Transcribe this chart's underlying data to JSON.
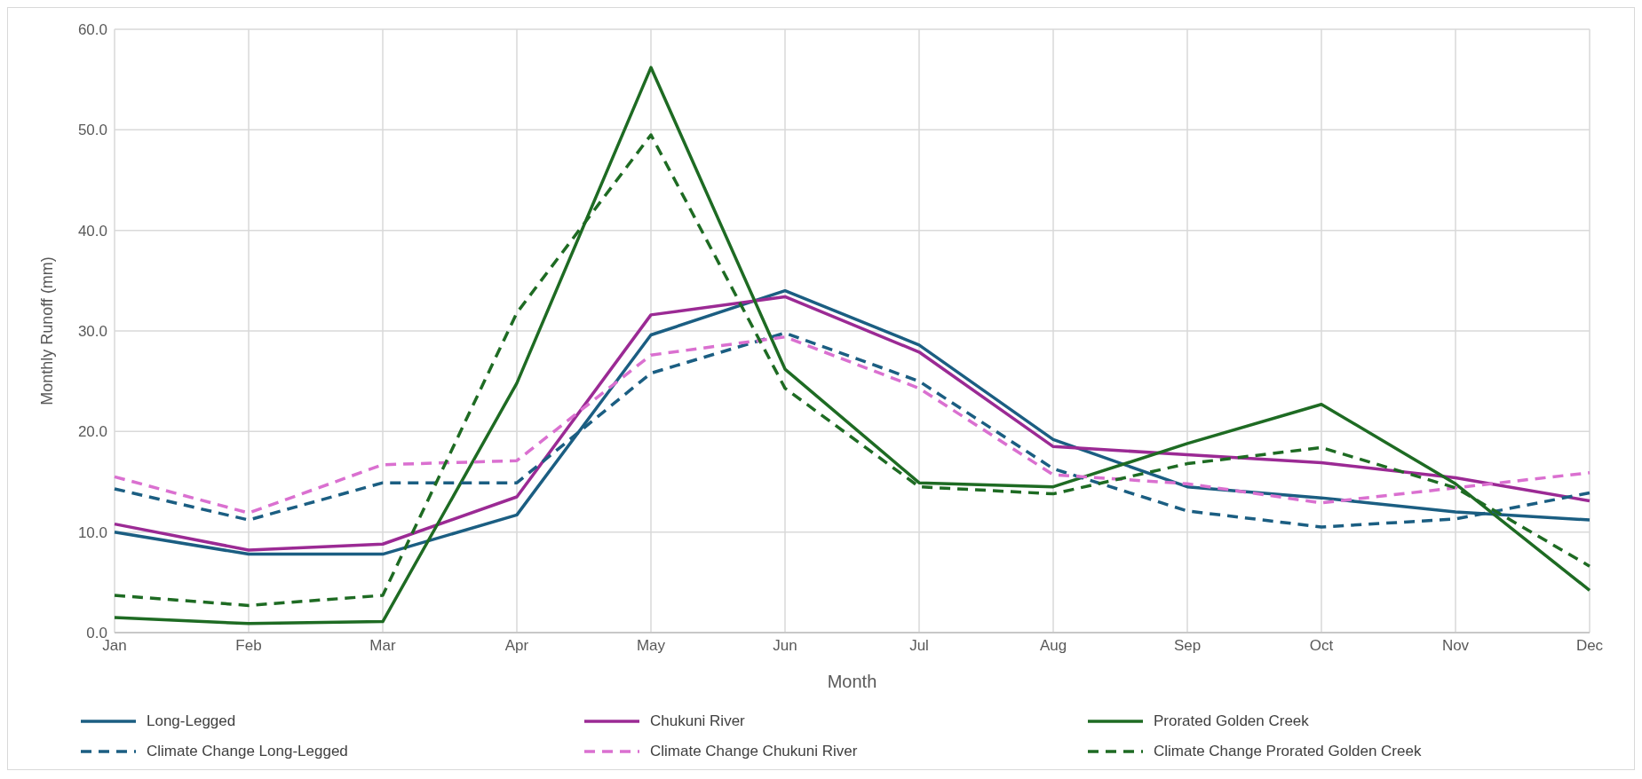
{
  "chart_data": {
    "type": "line",
    "xlabel": "Month",
    "ylabel": "Monthly Runoff (mm)",
    "categories": [
      "Jan",
      "Feb",
      "Mar",
      "Apr",
      "May",
      "Jun",
      "Jul",
      "Aug",
      "Sep",
      "Oct",
      "Nov",
      "Dec"
    ],
    "series": [
      {
        "name": "Long-Legged",
        "color": "#1b5e82",
        "line_style": "solid",
        "values": [
          10.0,
          7.8,
          7.8,
          11.7,
          29.6,
          34.0,
          28.6,
          19.2,
          14.5,
          13.4,
          12.0,
          11.2
        ]
      },
      {
        "name": "Chukuni River",
        "color": "#9b2a94",
        "line_style": "solid",
        "values": [
          10.8,
          8.2,
          8.8,
          13.5,
          31.6,
          33.4,
          27.9,
          18.5,
          17.7,
          16.9,
          15.4,
          13.1
        ]
      },
      {
        "name": "Prorated Golden Creek",
        "color": "#1e6b23",
        "line_style": "solid",
        "values": [
          1.5,
          0.9,
          1.1,
          24.8,
          56.2,
          26.2,
          14.9,
          14.5,
          18.8,
          22.7,
          14.8,
          4.2
        ]
      },
      {
        "name": "Climate Change Long-Legged",
        "color": "#1b5e82",
        "line_style": "dashed",
        "values": [
          14.3,
          11.2,
          14.9,
          14.9,
          25.8,
          29.8,
          25.0,
          16.3,
          12.1,
          10.5,
          11.3,
          13.9
        ]
      },
      {
        "name": "Climate Change Chukuni River",
        "color": "#da70d0",
        "line_style": "dashed",
        "values": [
          15.5,
          11.9,
          16.7,
          17.1,
          27.6,
          29.4,
          24.3,
          15.7,
          14.8,
          12.9,
          14.4,
          15.9
        ]
      },
      {
        "name": "Climate Change Prorated Golden Creek",
        "color": "#1e6b23",
        "line_style": "dashed",
        "values": [
          3.7,
          2.7,
          3.7,
          31.8,
          49.5,
          24.3,
          14.5,
          13.8,
          16.8,
          18.4,
          14.4,
          6.6
        ]
      }
    ],
    "ylim": [
      0,
      60
    ],
    "yticks": [
      {
        "value": 0,
        "label": "0.0"
      },
      {
        "value": 10,
        "label": "10.0"
      },
      {
        "value": 20,
        "label": "20.0"
      },
      {
        "value": 30,
        "label": "30.0"
      },
      {
        "value": 40,
        "label": "40.0"
      },
      {
        "value": 50,
        "label": "50.0"
      },
      {
        "value": 60,
        "label": "60.0"
      }
    ],
    "grid": true,
    "legend": "bottom",
    "marker": "none"
  }
}
